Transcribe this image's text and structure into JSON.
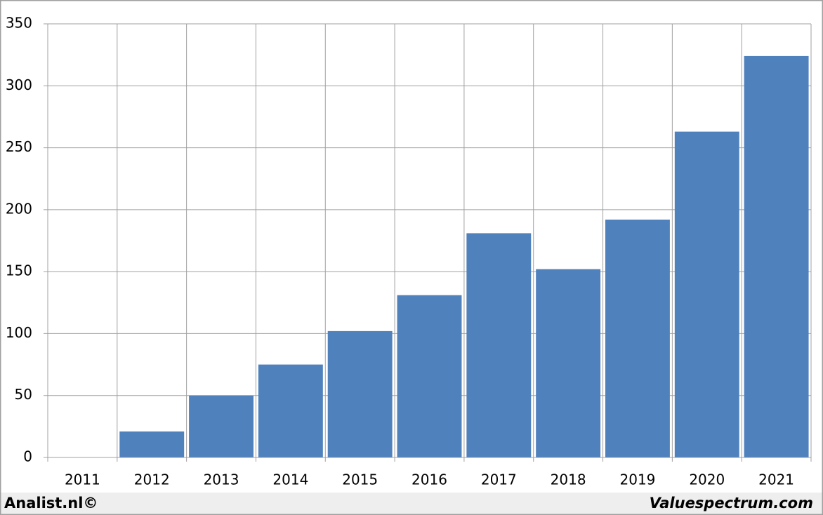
{
  "chart_data": {
    "type": "bar",
    "categories": [
      "2011",
      "2012",
      "2013",
      "2014",
      "2015",
      "2016",
      "2017",
      "2018",
      "2019",
      "2020",
      "2021"
    ],
    "values": [
      0,
      21,
      50,
      75,
      102,
      131,
      181,
      152,
      192,
      263,
      324
    ],
    "color": "#4f81bd",
    "ylim": [
      0,
      350
    ],
    "yticks": [
      0,
      50,
      100,
      150,
      200,
      250,
      300,
      350
    ],
    "grid": true,
    "source_left": "Analist.nl©",
    "source_right": "Valuespectrum.com"
  }
}
